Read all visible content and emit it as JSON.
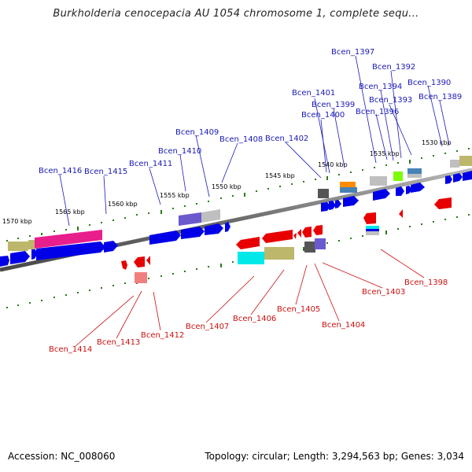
{
  "title": "Burkholderia cenocepacia AU 1054 chromosome 1, complete sequ...",
  "accession": "Accession: NC_008060",
  "summary": "Topology: circular; Length: 3,294,563 bp; Genes: 3,034",
  "colors": {
    "backbone": "#808080",
    "forward_gene": "#0000e8",
    "reverse_gene": "#ff0000",
    "forward_label": "#1a1ab8",
    "reverse_label": "#cc1010",
    "tick": "#2a7a1a"
  },
  "scale_labels": [
    "1570 kbp",
    "1565 kbp",
    "1560 kbp",
    "1555 kbp",
    "1550 kbp",
    "1545 kbp",
    "1540 kbp",
    "1535 kbp",
    "1530 kbp"
  ],
  "forward_labels": [
    "Bcen_1397",
    "Bcen_1392",
    "Bcen_1394",
    "Bcen_1390",
    "Bcen_1401",
    "Bcen_1393",
    "Bcen_1389",
    "Bcen_1399",
    "Bcen_1396",
    "Bcen_1400",
    "Bcen_1409",
    "Bcen_1408",
    "Bcen_1402",
    "Bcen_1410",
    "Bcen_1411",
    "Bcen_1416",
    "Bcen_1415"
  ],
  "reverse_labels": [
    "Bcen_1398",
    "Bcen_1403",
    "Bcen_1405",
    "Bcen_1406",
    "Bcen_1404",
    "Bcen_1407",
    "Bcen_1412",
    "Bcen_1413",
    "Bcen_1414"
  ]
}
